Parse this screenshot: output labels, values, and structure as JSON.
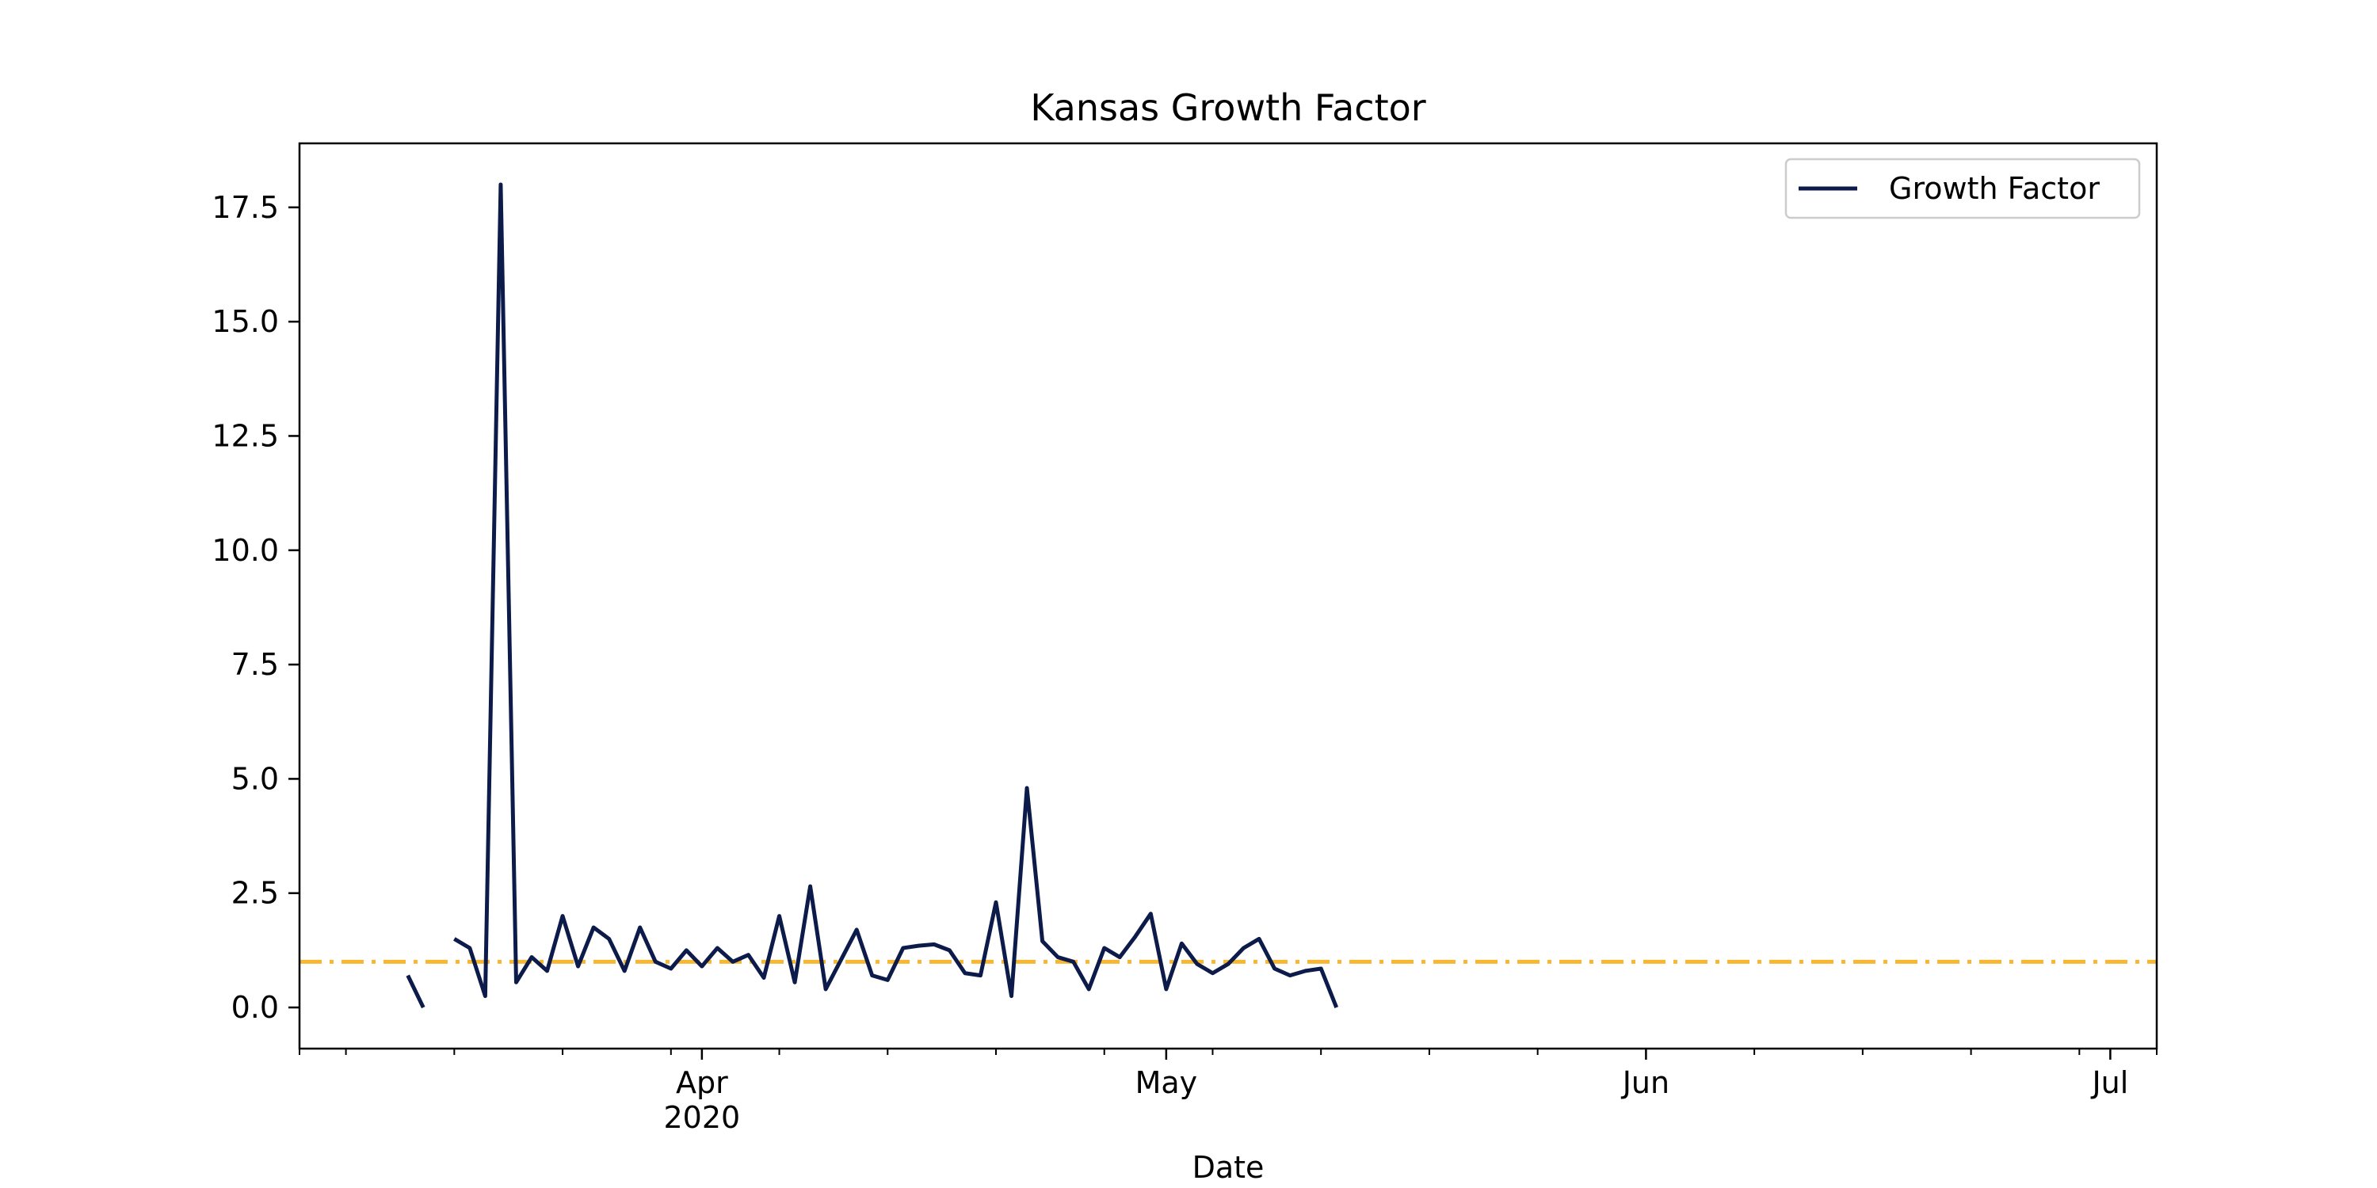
{
  "chart_data": {
    "type": "line",
    "title": "Kansas Growth Factor",
    "xlabel": "Date",
    "ylabel": "",
    "xlim": [
      "2020-03-06",
      "2020-07-04"
    ],
    "ylim": [
      -0.9,
      18.9
    ],
    "x_ticks": [
      {
        "date": "2020-04-01",
        "label": "Apr",
        "sublabel": "2020"
      },
      {
        "date": "2020-05-01",
        "label": "May",
        "sublabel": ""
      },
      {
        "date": "2020-06-01",
        "label": "Jun",
        "sublabel": ""
      },
      {
        "date": "2020-07-01",
        "label": "Jul",
        "sublabel": ""
      }
    ],
    "x_minor_ticks": [
      "2020-03-06",
      "2020-03-09",
      "2020-03-16",
      "2020-03-23",
      "2020-03-30",
      "2020-04-06",
      "2020-04-13",
      "2020-04-20",
      "2020-04-27",
      "2020-05-04",
      "2020-05-11",
      "2020-05-18",
      "2020-05-25",
      "2020-06-01",
      "2020-06-08",
      "2020-06-15",
      "2020-06-22",
      "2020-06-29",
      "2020-07-04"
    ],
    "y_ticks": [
      {
        "value": 0.0,
        "label": "0.0"
      },
      {
        "value": 2.5,
        "label": "2.5"
      },
      {
        "value": 5.0,
        "label": "5.0"
      },
      {
        "value": 7.5,
        "label": "7.5"
      },
      {
        "value": 10.0,
        "label": "10.0"
      },
      {
        "value": 12.5,
        "label": "12.5"
      },
      {
        "value": 15.0,
        "label": "15.0"
      },
      {
        "value": 17.5,
        "label": "17.5"
      }
    ],
    "reference_line": {
      "y": 1.0,
      "color": "#f7b733",
      "style": "dash-dot"
    },
    "legend": {
      "position": "top-right"
    },
    "series": [
      {
        "name": "Growth Factor",
        "color": "#0d1b4b",
        "points": [
          [
            "2020-03-13",
            0.7
          ],
          [
            "2020-03-14",
            0.0
          ],
          [
            "2020-03-15",
            null
          ],
          [
            "2020-03-16",
            1.5
          ],
          [
            "2020-03-17",
            1.3
          ],
          [
            "2020-03-18",
            0.25
          ],
          [
            "2020-03-19",
            18.0
          ],
          [
            "2020-03-20",
            0.55
          ],
          [
            "2020-03-21",
            1.1
          ],
          [
            "2020-03-22",
            0.8
          ],
          [
            "2020-03-23",
            2.0
          ],
          [
            "2020-03-24",
            0.9
          ],
          [
            "2020-03-25",
            1.75
          ],
          [
            "2020-03-26",
            1.5
          ],
          [
            "2020-03-27",
            0.8
          ],
          [
            "2020-03-28",
            1.75
          ],
          [
            "2020-03-29",
            1.0
          ],
          [
            "2020-03-30",
            0.85
          ],
          [
            "2020-03-31",
            1.25
          ],
          [
            "2020-04-01",
            0.9
          ],
          [
            "2020-04-02",
            1.3
          ],
          [
            "2020-04-03",
            1.0
          ],
          [
            "2020-04-04",
            1.15
          ],
          [
            "2020-04-05",
            0.65
          ],
          [
            "2020-04-06",
            2.0
          ],
          [
            "2020-04-07",
            0.55
          ],
          [
            "2020-04-08",
            2.65
          ],
          [
            "2020-04-09",
            0.4
          ],
          [
            "2020-04-10",
            1.05
          ],
          [
            "2020-04-11",
            1.7
          ],
          [
            "2020-04-12",
            0.7
          ],
          [
            "2020-04-13",
            0.6
          ],
          [
            "2020-04-14",
            1.3
          ],
          [
            "2020-04-15",
            1.35
          ],
          [
            "2020-04-16",
            1.38
          ],
          [
            "2020-04-17",
            1.25
          ],
          [
            "2020-04-18",
            0.75
          ],
          [
            "2020-04-19",
            0.7
          ],
          [
            "2020-04-20",
            2.3
          ],
          [
            "2020-04-21",
            0.25
          ],
          [
            "2020-04-22",
            4.8
          ],
          [
            "2020-04-23",
            1.45
          ],
          [
            "2020-04-24",
            1.1
          ],
          [
            "2020-04-25",
            1.0
          ],
          [
            "2020-04-26",
            0.4
          ],
          [
            "2020-04-27",
            1.3
          ],
          [
            "2020-04-28",
            1.1
          ],
          [
            "2020-04-29",
            1.55
          ],
          [
            "2020-04-30",
            2.05
          ],
          [
            "2020-05-01",
            0.4
          ],
          [
            "2020-05-02",
            1.4
          ],
          [
            "2020-05-03",
            0.95
          ],
          [
            "2020-05-04",
            0.75
          ],
          [
            "2020-05-05",
            0.95
          ],
          [
            "2020-05-06",
            1.3
          ],
          [
            "2020-05-07",
            1.5
          ],
          [
            "2020-05-08",
            0.85
          ],
          [
            "2020-05-09",
            0.7
          ],
          [
            "2020-05-10",
            0.8
          ],
          [
            "2020-05-11",
            0.85
          ],
          [
            "2020-05-12",
            0.0
          ]
        ]
      }
    ]
  }
}
